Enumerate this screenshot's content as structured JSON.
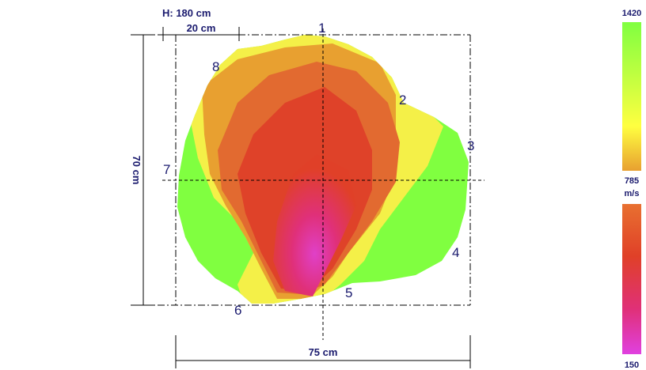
{
  "dimensions": {
    "height_label": "H: 180 cm",
    "scale_label": "20 cm",
    "vertical_label": "70 cm",
    "horizontal_label": "75 cm"
  },
  "sensor_points": [
    {
      "label": "1"
    },
    {
      "label": "2"
    },
    {
      "label": "3"
    },
    {
      "label": "4"
    },
    {
      "label": "5"
    },
    {
      "label": "6"
    },
    {
      "label": "7"
    },
    {
      "label": "8"
    }
  ],
  "legend": {
    "max_label": "1420",
    "mid_label": "785",
    "unit_label": "m/s",
    "min_label": "150",
    "colors": {
      "green": "#80ff40",
      "yellow": "#ffff40",
      "orange": "#e8a030",
      "dark_orange": "#e87030",
      "red": "#e04028",
      "magenta": "#e040e0"
    }
  }
}
